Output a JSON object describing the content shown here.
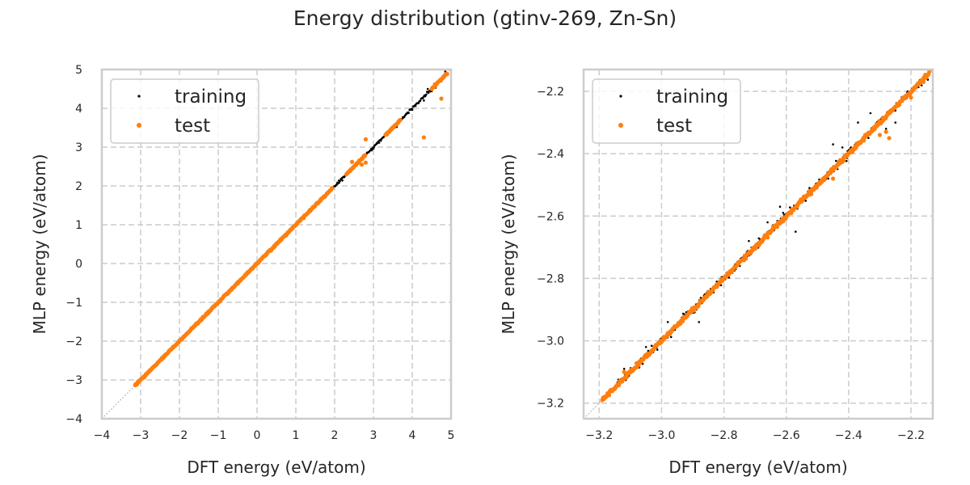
{
  "figure": {
    "title": "Energy distribution (gtinv-269, Zn-Sn)"
  },
  "colors": {
    "training": "#000000",
    "test": "#ff7f0e",
    "grid": "#cccccc",
    "frame": "#cccccc",
    "reference_line": "#999999"
  },
  "chart_data": [
    {
      "type": "scatter",
      "title": "",
      "xlabel": "DFT energy (eV/atom)",
      "ylabel": "MLP energy (eV/atom)",
      "xlim": [
        -4,
        5
      ],
      "ylim": [
        -4,
        5
      ],
      "xticks": [
        "−4",
        "−3",
        "−2",
        "−1",
        "0",
        "1",
        "2",
        "3",
        "4",
        "5"
      ],
      "xtick_values": [
        -4,
        -3,
        -2,
        -1,
        0,
        1,
        2,
        3,
        4,
        5
      ],
      "yticks": [
        "−4",
        "−3",
        "−2",
        "−1",
        "0",
        "1",
        "2",
        "3",
        "4",
        "5"
      ],
      "ytick_values": [
        -4,
        -3,
        -2,
        -1,
        0,
        1,
        2,
        3,
        4,
        5
      ],
      "grid": true,
      "grid_style": "dashed",
      "legend": {
        "position": "top-left",
        "entries": [
          "training",
          "test"
        ]
      },
      "reference_line": "y=x",
      "series": [
        {
          "name": "training",
          "segments": [
            [
              -3.15,
              -2.6
            ],
            [
              -2.6,
              -0.5
            ],
            [
              -0.5,
              1.1
            ],
            [
              1.1,
              2.2
            ],
            [
              2.2,
              3.4
            ],
            [
              3.4,
              4.9
            ]
          ],
          "spread": 0.03,
          "points": [
            [
              2.8,
              2.78
            ],
            [
              2.5,
              2.46
            ],
            [
              2.2,
              2.14
            ],
            [
              3.0,
              2.96
            ],
            [
              4.0,
              3.96
            ],
            [
              4.3,
              4.2
            ],
            [
              4.5,
              4.44
            ],
            [
              4.6,
              4.53
            ],
            [
              4.75,
              4.7
            ],
            [
              4.85,
              4.95
            ],
            [
              4.4,
              4.5
            ],
            [
              3.6,
              3.52
            ]
          ]
        },
        {
          "name": "test",
          "segments": [
            [
              -3.15,
              -2.3
            ],
            [
              -2.3,
              -0.4
            ],
            [
              -0.4,
              1.2
            ],
            [
              1.2,
              1.95
            ],
            [
              2.3,
              2.8
            ],
            [
              3.3,
              3.7
            ],
            [
              4.5,
              4.9
            ]
          ],
          "spread": 0.02,
          "points": [
            [
              2.8,
              3.2
            ],
            [
              4.3,
              3.25
            ],
            [
              4.75,
              4.25
            ],
            [
              2.8,
              2.6
            ],
            [
              2.7,
              2.55
            ],
            [
              2.45,
              2.62
            ],
            [
              3.35,
              3.33
            ],
            [
              4.6,
              4.62
            ],
            [
              4.9,
              4.88
            ],
            [
              1.2,
              1.17
            ],
            [
              -0.5,
              -0.52
            ],
            [
              -3.1,
              -3.12
            ]
          ]
        }
      ]
    },
    {
      "type": "scatter",
      "title": "",
      "xlabel": "DFT energy (eV/atom)",
      "ylabel": "MLP energy (eV/atom)",
      "xlim": [
        -3.25,
        -2.13
      ],
      "ylim": [
        -3.25,
        -2.13
      ],
      "xticks": [
        "−3.2",
        "−3.0",
        "−2.8",
        "−2.6",
        "−2.4",
        "−2.2"
      ],
      "xtick_values": [
        -3.2,
        -3.0,
        -2.8,
        -2.6,
        -2.4,
        -2.2
      ],
      "yticks": [
        "−3.2",
        "−3.0",
        "−2.8",
        "−2.6",
        "−2.4",
        "−2.2"
      ],
      "ytick_values": [
        -3.2,
        -3.0,
        -2.8,
        -2.6,
        -2.4,
        -2.2
      ],
      "grid": true,
      "grid_style": "dashed",
      "legend": {
        "position": "top-left",
        "entries": [
          "training",
          "test"
        ]
      },
      "reference_line": "y=x",
      "series": [
        {
          "name": "training",
          "segments": [
            [
              -3.15,
              -2.14
            ]
          ],
          "spread": 0.012,
          "points": [
            [
              -3.12,
              -3.09
            ],
            [
              -3.05,
              -3.02
            ],
            [
              -2.98,
              -2.94
            ],
            [
              -2.62,
              -2.57
            ],
            [
              -2.57,
              -2.65
            ],
            [
              -2.45,
              -2.37
            ],
            [
              -2.42,
              -2.38
            ],
            [
              -2.37,
              -2.3
            ],
            [
              -2.33,
              -2.27
            ],
            [
              -2.28,
              -2.32
            ],
            [
              -2.25,
              -2.3
            ],
            [
              -2.88,
              -2.94
            ],
            [
              -2.72,
              -2.68
            ],
            [
              -2.66,
              -2.62
            ]
          ]
        },
        {
          "name": "test",
          "segments": [
            [
              -3.19,
              -2.14
            ]
          ],
          "spread": 0.006,
          "points": [
            [
              -3.19,
              -3.19
            ],
            [
              -3.12,
              -3.1
            ],
            [
              -3.06,
              -3.06
            ],
            [
              -2.3,
              -2.34
            ],
            [
              -2.28,
              -2.33
            ],
            [
              -2.27,
              -2.35
            ],
            [
              -2.45,
              -2.48
            ],
            [
              -2.52,
              -2.53
            ],
            [
              -2.2,
              -2.22
            ],
            [
              -2.16,
              -2.17
            ]
          ]
        }
      ]
    }
  ]
}
